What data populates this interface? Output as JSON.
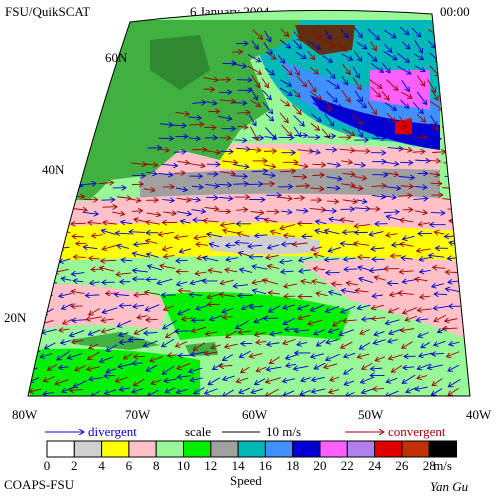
{
  "header": {
    "title": "FSU/QuikSCAT",
    "date": "6 January 2004",
    "time": "00:00"
  },
  "map": {
    "lat_labels": [
      "60N",
      "40N",
      "20N"
    ],
    "lon_labels": [
      "80W",
      "70W",
      "60W",
      "50W",
      "40W"
    ]
  },
  "legend": {
    "divergent": "divergent",
    "scale": "scale",
    "scale_value": "10 m/s",
    "convergent": "convergent",
    "colorbar": {
      "labels": [
        0,
        2,
        4,
        6,
        8,
        10,
        12,
        14,
        16,
        18,
        20,
        22,
        24,
        26,
        28
      ],
      "unit": "m/s",
      "title": "Speed",
      "colors": [
        "#ffffff",
        "#d0d0d0",
        "#ffff00",
        "#ffc0c8",
        "#98f898",
        "#00f000",
        "#a0a0a0",
        "#00b8b8",
        "#4090ff",
        "#0000d0",
        "#ff60ff",
        "#b080f0",
        "#e00000",
        "#c03000",
        "#000000"
      ]
    }
  },
  "footer": {
    "credit": "COAPS-FSU",
    "author": "Yan Gu"
  }
}
